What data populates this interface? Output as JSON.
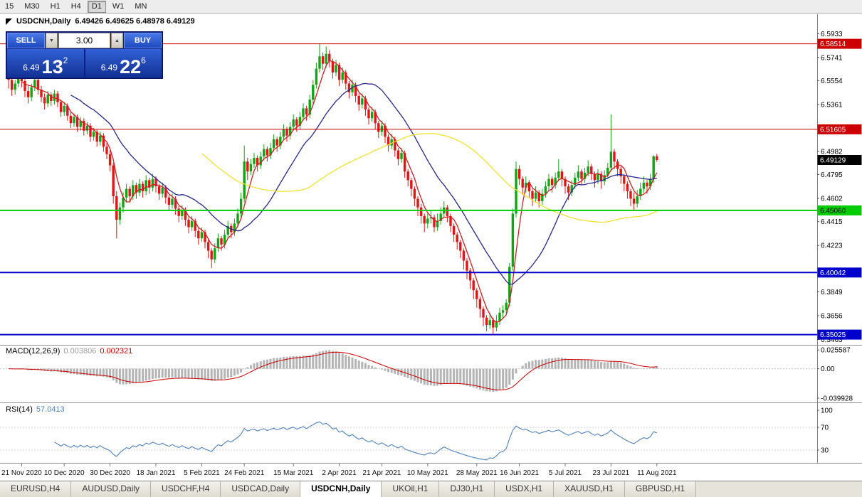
{
  "toolbar": {
    "timeframes": [
      "15",
      "M30",
      "H1",
      "H4",
      "D1",
      "W1",
      "MN"
    ],
    "active": "D1"
  },
  "chart": {
    "symbol_period": "USDCNH,Daily",
    "ohlc_text": "6.49426 6.49625 6.48978 6.49129"
  },
  "icons": {
    "spin_down": "▼",
    "spin_up": "▲"
  },
  "trade_panel": {
    "volume": "3.00",
    "sell": {
      "label": "SELL",
      "price_prefix": "6.49",
      "price_big": "13",
      "price_sup": "2"
    },
    "buy": {
      "label": "BUY",
      "price_prefix": "6.49",
      "price_big": "22",
      "price_sup": "6"
    }
  },
  "indicators": {
    "macd": {
      "name": "MACD(12,26,9)",
      "value": "0.003806",
      "signal": "0.002321"
    },
    "rsi": {
      "name": "RSI(14)",
      "value": "57.0413"
    }
  },
  "tabs": [
    {
      "label": "EURUSD,H4"
    },
    {
      "label": "AUDUSD,Daily"
    },
    {
      "label": "USDCHF,H4"
    },
    {
      "label": "USDCAD,Daily"
    },
    {
      "label": "USDCNH,Daily",
      "active": true
    },
    {
      "label": "UKOil,H1"
    },
    {
      "label": "DJ30,H1"
    },
    {
      "label": "USDX,H1"
    },
    {
      "label": "XAUUSD,H1"
    },
    {
      "label": "GBPUSD,H1"
    }
  ],
  "chart_data": {
    "type": "candlestick",
    "symbol": "USDCNH",
    "timeframe": "Daily",
    "colors": {
      "up": "#12a412",
      "down": "#e01616",
      "macd_hist": "#b4b4b4",
      "macd_signal": "#cc0000",
      "rsi_line": "#4f81bd"
    },
    "price_axis": {
      "max": 6.609,
      "min": 6.342,
      "tick_labels": [
        "6.5933",
        "6.5741",
        "6.5554",
        "6.5361",
        "6.4982",
        "6.4795",
        "6.4602",
        "6.4415",
        "6.4223",
        "6.3849",
        "6.3656",
        "6.3463"
      ]
    },
    "levels": [
      {
        "label": "6.58514",
        "color": "#cc0000",
        "width": 1,
        "text_color": "#ffffff"
      },
      {
        "label": "6.51605",
        "color": "#cc0000",
        "width": 1,
        "text_color": "#ffffff"
      },
      {
        "label": "6.45060",
        "color": "#00cc00",
        "width": 2,
        "text_color": "#000000"
      },
      {
        "label": "6.40042",
        "color": "#0000cc",
        "width": 2,
        "text_color": "#ffffff"
      },
      {
        "label": "6.35025",
        "color": "#0000cc",
        "width": 2,
        "text_color": "#ffffff"
      }
    ],
    "current_price": {
      "label": "6.49129",
      "bg": "#000000",
      "text_color": "#ffffff"
    },
    "ma": [
      {
        "period": 5,
        "color": "#cc2020"
      },
      {
        "period": 20,
        "color": "#26268c"
      },
      {
        "period": 60,
        "color": "#f0e130"
      }
    ],
    "macd": {
      "params": "12,26,9",
      "scale_top": 0.0306,
      "scale_bottom": -0.0449,
      "scale_labels": [
        "0.025587",
        "0.00",
        "-0.039928"
      ]
    },
    "rsi": {
      "period": 14,
      "levels": [
        70,
        30
      ],
      "scale_labels": [
        "100",
        "70",
        "30"
      ]
    },
    "date_labels": [
      {
        "i": 4,
        "t": "21 Nov 2020"
      },
      {
        "i": 17,
        "t": "10 Dec 2020"
      },
      {
        "i": 31,
        "t": "30 Dec 2020"
      },
      {
        "i": 45,
        "t": "18 Jan 2021"
      },
      {
        "i": 59,
        "t": "5 Feb 2021"
      },
      {
        "i": 72,
        "t": "24 Feb 2021"
      },
      {
        "i": 87,
        "t": "15 Mar 2021"
      },
      {
        "i": 101,
        "t": "2 Apr 2021"
      },
      {
        "i": 114,
        "t": "21 Apr 2021"
      },
      {
        "i": 128,
        "t": "10 May 2021"
      },
      {
        "i": 143,
        "t": "28 May 2021"
      },
      {
        "i": 156,
        "t": "16 Jun 2021"
      },
      {
        "i": 170,
        "t": "5 Jul 2021"
      },
      {
        "i": 184,
        "t": "23 Jul 2021"
      },
      {
        "i": 198,
        "t": "11 Aug 2021"
      }
    ],
    "candles": [
      [
        6.561,
        6.566,
        6.549,
        6.556
      ],
      [
        6.556,
        6.559,
        6.543,
        6.548
      ],
      [
        6.548,
        6.556,
        6.544,
        6.553
      ],
      [
        6.553,
        6.566,
        6.55,
        6.561
      ],
      [
        6.561,
        6.564,
        6.55,
        6.555
      ],
      [
        6.555,
        6.558,
        6.542,
        6.547
      ],
      [
        6.547,
        6.551,
        6.537,
        6.542
      ],
      [
        6.542,
        6.553,
        6.539,
        6.55
      ],
      [
        6.55,
        6.56,
        6.547,
        6.556
      ],
      [
        6.556,
        6.558,
        6.544,
        6.548
      ],
      [
        6.548,
        6.551,
        6.538,
        6.542
      ],
      [
        6.542,
        6.545,
        6.532,
        6.537
      ],
      [
        6.537,
        6.547,
        6.534,
        6.544
      ],
      [
        6.544,
        6.546,
        6.535,
        6.539
      ],
      [
        6.539,
        6.548,
        6.536,
        6.545
      ],
      [
        6.545,
        6.547,
        6.534,
        6.538
      ],
      [
        6.538,
        6.54,
        6.526,
        6.53
      ],
      [
        6.53,
        6.538,
        6.527,
        6.535
      ],
      [
        6.535,
        6.537,
        6.523,
        6.527
      ],
      [
        6.527,
        6.53,
        6.517,
        6.521
      ],
      [
        6.521,
        6.529,
        6.518,
        6.526
      ],
      [
        6.526,
        6.528,
        6.514,
        6.518
      ],
      [
        6.518,
        6.526,
        6.515,
        6.523
      ],
      [
        6.523,
        6.525,
        6.511,
        6.515
      ],
      [
        6.515,
        6.522,
        6.512,
        6.519
      ],
      [
        6.519,
        6.521,
        6.506,
        6.51
      ],
      [
        6.51,
        6.517,
        6.507,
        6.514
      ],
      [
        6.514,
        6.516,
        6.502,
        6.506
      ],
      [
        6.506,
        6.514,
        6.503,
        6.511
      ],
      [
        6.511,
        6.513,
        6.498,
        6.502
      ],
      [
        6.502,
        6.505,
        6.492,
        6.496
      ],
      [
        6.496,
        6.499,
        6.482,
        6.487
      ],
      [
        6.487,
        6.489,
        6.456,
        6.462
      ],
      [
        6.462,
        6.466,
        6.428,
        6.443
      ],
      [
        6.443,
        6.457,
        6.439,
        6.453
      ],
      [
        6.453,
        6.465,
        6.449,
        6.461
      ],
      [
        6.461,
        6.472,
        6.457,
        6.468
      ],
      [
        6.468,
        6.47,
        6.457,
        6.462
      ],
      [
        6.462,
        6.475,
        6.459,
        6.471
      ],
      [
        6.471,
        6.473,
        6.46,
        6.465
      ],
      [
        6.465,
        6.476,
        6.462,
        6.472
      ],
      [
        6.472,
        6.474,
        6.461,
        6.466
      ],
      [
        6.466,
        6.479,
        6.463,
        6.475
      ],
      [
        6.475,
        6.477,
        6.464,
        6.469
      ],
      [
        6.469,
        6.48,
        6.466,
        6.476
      ],
      [
        6.476,
        6.478,
        6.465,
        6.47
      ],
      [
        6.47,
        6.472,
        6.459,
        6.464
      ],
      [
        6.464,
        6.473,
        6.461,
        6.469
      ],
      [
        6.469,
        6.471,
        6.456,
        6.461
      ],
      [
        6.461,
        6.463,
        6.45,
        6.455
      ],
      [
        6.455,
        6.464,
        6.452,
        6.46
      ],
      [
        6.46,
        6.462,
        6.447,
        6.452
      ],
      [
        6.452,
        6.454,
        6.441,
        6.446
      ],
      [
        6.446,
        6.455,
        6.443,
        6.451
      ],
      [
        6.451,
        6.453,
        6.438,
        6.443
      ],
      [
        6.443,
        6.445,
        6.432,
        6.437
      ],
      [
        6.437,
        6.446,
        6.434,
        6.442
      ],
      [
        6.442,
        6.444,
        6.429,
        6.434
      ],
      [
        6.434,
        6.436,
        6.423,
        6.428
      ],
      [
        6.428,
        6.437,
        6.425,
        6.433
      ],
      [
        6.433,
        6.435,
        6.42,
        6.425
      ],
      [
        6.425,
        6.427,
        6.412,
        6.418
      ],
      [
        6.418,
        6.42,
        6.404,
        6.411
      ],
      [
        6.411,
        6.424,
        6.408,
        6.42
      ],
      [
        6.42,
        6.432,
        6.417,
        6.428
      ],
      [
        6.428,
        6.43,
        6.418,
        6.423
      ],
      [
        6.423,
        6.435,
        6.42,
        6.431
      ],
      [
        6.431,
        6.442,
        6.428,
        6.438
      ],
      [
        6.438,
        6.44,
        6.428,
        6.433
      ],
      [
        6.433,
        6.444,
        6.43,
        6.44
      ],
      [
        6.44,
        6.452,
        6.437,
        6.448
      ],
      [
        6.448,
        6.465,
        6.445,
        6.46
      ],
      [
        6.46,
        6.503,
        6.457,
        6.49
      ],
      [
        6.49,
        6.493,
        6.475,
        6.482
      ],
      [
        6.482,
        6.492,
        6.479,
        6.488
      ],
      [
        6.488,
        6.497,
        6.485,
        6.493
      ],
      [
        6.493,
        6.495,
        6.482,
        6.487
      ],
      [
        6.487,
        6.498,
        6.484,
        6.494
      ],
      [
        6.494,
        6.504,
        6.491,
        6.5
      ],
      [
        6.5,
        6.502,
        6.49,
        6.495
      ],
      [
        6.495,
        6.505,
        6.492,
        6.501
      ],
      [
        6.501,
        6.512,
        6.498,
        6.508
      ],
      [
        6.508,
        6.51,
        6.498,
        6.503
      ],
      [
        6.503,
        6.514,
        6.5,
        6.51
      ],
      [
        6.51,
        6.52,
        6.507,
        6.516
      ],
      [
        6.516,
        6.518,
        6.506,
        6.511
      ],
      [
        6.511,
        6.522,
        6.508,
        6.518
      ],
      [
        6.518,
        6.528,
        6.515,
        6.524
      ],
      [
        6.524,
        6.526,
        6.514,
        6.519
      ],
      [
        6.519,
        6.53,
        6.516,
        6.526
      ],
      [
        6.526,
        6.537,
        6.523,
        6.533
      ],
      [
        6.533,
        6.535,
        6.523,
        6.528
      ],
      [
        6.528,
        6.544,
        6.525,
        6.54
      ],
      [
        6.54,
        6.556,
        6.537,
        6.552
      ],
      [
        6.552,
        6.57,
        6.549,
        6.565
      ],
      [
        6.565,
        6.585,
        6.562,
        6.575
      ],
      [
        6.575,
        6.578,
        6.564,
        6.569
      ],
      [
        6.569,
        6.583,
        6.566,
        6.577
      ],
      [
        6.577,
        6.58,
        6.566,
        6.571
      ],
      [
        6.571,
        6.573,
        6.557,
        6.562
      ],
      [
        6.562,
        6.572,
        6.559,
        6.568
      ],
      [
        6.568,
        6.57,
        6.551,
        6.556
      ],
      [
        6.556,
        6.566,
        6.553,
        6.562
      ],
      [
        6.562,
        6.564,
        6.548,
        6.553
      ],
      [
        6.553,
        6.555,
        6.541,
        6.546
      ],
      [
        6.546,
        6.556,
        6.543,
        6.552
      ],
      [
        6.552,
        6.554,
        6.538,
        6.543
      ],
      [
        6.543,
        6.545,
        6.531,
        6.536
      ],
      [
        6.536,
        6.545,
        6.533,
        6.541
      ],
      [
        6.541,
        6.543,
        6.527,
        6.532
      ],
      [
        6.532,
        6.534,
        6.52,
        6.525
      ],
      [
        6.525,
        6.534,
        6.522,
        6.53
      ],
      [
        6.53,
        6.532,
        6.516,
        6.521
      ],
      [
        6.521,
        6.523,
        6.509,
        6.514
      ],
      [
        6.514,
        6.523,
        6.511,
        6.519
      ],
      [
        6.519,
        6.521,
        6.505,
        6.51
      ],
      [
        6.51,
        6.512,
        6.498,
        6.503
      ],
      [
        6.503,
        6.512,
        6.5,
        6.508
      ],
      [
        6.508,
        6.51,
        6.494,
        6.499
      ],
      [
        6.499,
        6.501,
        6.487,
        6.492
      ],
      [
        6.492,
        6.501,
        6.489,
        6.497
      ],
      [
        6.497,
        6.499,
        6.477,
        6.482
      ],
      [
        6.482,
        6.484,
        6.47,
        6.475
      ],
      [
        6.475,
        6.477,
        6.462,
        6.468
      ],
      [
        6.468,
        6.47,
        6.454,
        6.46
      ],
      [
        6.46,
        6.462,
        6.446,
        6.453
      ],
      [
        6.453,
        6.456,
        6.44,
        6.446
      ],
      [
        6.446,
        6.448,
        6.433,
        6.44
      ],
      [
        6.44,
        6.448,
        6.436,
        6.444
      ],
      [
        6.444,
        6.451,
        6.44,
        6.445
      ],
      [
        6.445,
        6.447,
        6.433,
        6.437
      ],
      [
        6.437,
        6.448,
        6.434,
        6.442
      ],
      [
        6.442,
        6.453,
        6.439,
        6.448
      ],
      [
        6.448,
        6.458,
        6.445,
        6.453
      ],
      [
        6.453,
        6.455,
        6.441,
        6.446
      ],
      [
        6.446,
        6.448,
        6.433,
        6.438
      ],
      [
        6.438,
        6.44,
        6.425,
        6.431
      ],
      [
        6.431,
        6.433,
        6.419,
        6.425
      ],
      [
        6.425,
        6.427,
        6.412,
        6.418
      ],
      [
        6.418,
        6.42,
        6.403,
        6.41
      ],
      [
        6.41,
        6.412,
        6.395,
        6.402
      ],
      [
        6.402,
        6.404,
        6.387,
        6.394
      ],
      [
        6.394,
        6.396,
        6.379,
        6.386
      ],
      [
        6.386,
        6.388,
        6.372,
        6.379
      ],
      [
        6.379,
        6.381,
        6.364,
        6.371
      ],
      [
        6.371,
        6.373,
        6.357,
        6.364
      ],
      [
        6.364,
        6.366,
        6.353,
        6.358
      ],
      [
        6.358,
        6.368,
        6.355,
        6.362
      ],
      [
        6.362,
        6.364,
        6.3505,
        6.356
      ],
      [
        6.356,
        6.366,
        6.353,
        6.361
      ],
      [
        6.361,
        6.372,
        6.358,
        6.368
      ],
      [
        6.368,
        6.374,
        6.363,
        6.37
      ],
      [
        6.37,
        6.379,
        6.367,
        6.376
      ],
      [
        6.376,
        6.408,
        6.373,
        6.405
      ],
      [
        6.405,
        6.452,
        6.402,
        6.448
      ],
      [
        6.448,
        6.49,
        6.445,
        6.484
      ],
      [
        6.484,
        6.487,
        6.471,
        6.476
      ],
      [
        6.476,
        6.478,
        6.463,
        6.469
      ],
      [
        6.469,
        6.478,
        6.465,
        6.473
      ],
      [
        6.473,
        6.475,
        6.461,
        6.466
      ],
      [
        6.466,
        6.468,
        6.454,
        6.46
      ],
      [
        6.46,
        6.47,
        6.457,
        6.465
      ],
      [
        6.465,
        6.467,
        6.453,
        6.458
      ],
      [
        6.458,
        6.468,
        6.455,
        6.464
      ],
      [
        6.464,
        6.474,
        6.461,
        6.47
      ],
      [
        6.47,
        6.48,
        6.467,
        6.476
      ],
      [
        6.476,
        6.478,
        6.465,
        6.471
      ],
      [
        6.471,
        6.481,
        6.468,
        6.477
      ],
      [
        6.477,
        6.492,
        6.474,
        6.482
      ],
      [
        6.482,
        6.484,
        6.47,
        6.476
      ],
      [
        6.476,
        6.478,
        6.464,
        6.47
      ],
      [
        6.47,
        6.472,
        6.459,
        6.465
      ],
      [
        6.465,
        6.475,
        6.462,
        6.471
      ],
      [
        6.471,
        6.481,
        6.468,
        6.477
      ],
      [
        6.477,
        6.487,
        6.474,
        6.482
      ],
      [
        6.482,
        6.484,
        6.471,
        6.476
      ],
      [
        6.476,
        6.485,
        6.473,
        6.481
      ],
      [
        6.481,
        6.491,
        6.478,
        6.486
      ],
      [
        6.486,
        6.488,
        6.475,
        6.48
      ],
      [
        6.48,
        6.482,
        6.469,
        6.475
      ],
      [
        6.475,
        6.484,
        6.472,
        6.48
      ],
      [
        6.48,
        6.482,
        6.468,
        6.474
      ],
      [
        6.474,
        6.483,
        6.471,
        6.479
      ],
      [
        6.479,
        6.489,
        6.476,
        6.485
      ],
      [
        6.485,
        6.528,
        6.482,
        6.498
      ],
      [
        6.498,
        6.5,
        6.484,
        6.49
      ],
      [
        6.49,
        6.492,
        6.478,
        6.484
      ],
      [
        6.484,
        6.486,
        6.472,
        6.478
      ],
      [
        6.478,
        6.48,
        6.466,
        6.472
      ],
      [
        6.472,
        6.474,
        6.46,
        6.466
      ],
      [
        6.466,
        6.468,
        6.454,
        6.46
      ],
      [
        6.46,
        6.465,
        6.45,
        6.456
      ],
      [
        6.456,
        6.467,
        6.453,
        6.462
      ],
      [
        6.462,
        6.473,
        6.459,
        6.468
      ],
      [
        6.468,
        6.478,
        6.465,
        6.473
      ],
      [
        6.473,
        6.475,
        6.464,
        6.47
      ],
      [
        6.47,
        6.48,
        6.467,
        6.476
      ],
      [
        6.476,
        6.495,
        6.473,
        6.4943
      ],
      [
        6.49426,
        6.49625,
        6.48978,
        6.49129
      ]
    ]
  }
}
